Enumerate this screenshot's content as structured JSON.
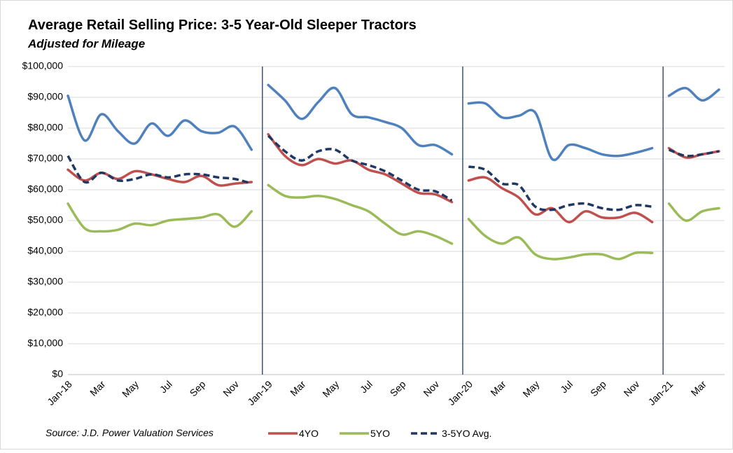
{
  "chart_data": {
    "type": "line",
    "title": "Average Retail Selling Price: 3-5 Year-Old Sleeper Tractors",
    "subtitle": "Adjusted for Mileage",
    "source": "Source: J.D. Power Valuation Services",
    "categories": [
      "Jan-18",
      null,
      "Mar",
      null,
      "May",
      null,
      "Jul",
      null,
      "Sep",
      null,
      "Nov",
      null,
      "Jan-19",
      null,
      "Mar",
      null,
      "May",
      null,
      "Jul",
      null,
      "Sep",
      null,
      "Nov",
      null,
      "Jan-20",
      null,
      "Mar",
      null,
      "May",
      null,
      "Jul",
      null,
      "Sep",
      null,
      "Nov",
      null,
      "Jan-21",
      null,
      "Mar",
      null
    ],
    "series": [
      {
        "color": "#4f81bd",
        "dash": false,
        "values": [
          90500,
          76000,
          84500,
          79000,
          75000,
          81500,
          77500,
          82500,
          79000,
          78500,
          80500,
          73000,
          94000,
          89000,
          83000,
          88500,
          93000,
          84500,
          83500,
          82000,
          80000,
          74500,
          74500,
          71500,
          88000,
          88000,
          83500,
          84000,
          85000,
          70000,
          74500,
          73500,
          71500,
          71000,
          72000,
          73500,
          90500,
          93000,
          89000,
          92500
        ]
      },
      {
        "name": "4YO",
        "color": "#c0504d",
        "dash": false,
        "values": [
          66500,
          63000,
          65500,
          63500,
          66000,
          65000,
          63500,
          62500,
          64500,
          61500,
          62000,
          62500,
          78000,
          71000,
          68000,
          70000,
          68500,
          69500,
          66500,
          65000,
          62000,
          59000,
          58500,
          56000,
          63000,
          64000,
          60500,
          57500,
          52000,
          54000,
          49500,
          53000,
          51000,
          51000,
          52500,
          49500,
          73500,
          70500,
          71500,
          72500
        ]
      },
      {
        "name": "5YO",
        "color": "#9bbb59",
        "dash": false,
        "values": [
          55500,
          47500,
          46500,
          47000,
          49000,
          48500,
          50000,
          50500,
          51000,
          52000,
          48000,
          53000,
          61500,
          58000,
          57500,
          58000,
          57000,
          55000,
          53000,
          49000,
          45500,
          46500,
          45000,
          42500,
          50500,
          45000,
          42500,
          44500,
          39000,
          37500,
          38000,
          39000,
          39000,
          37500,
          39500,
          39500,
          55500,
          50000,
          53000,
          54000
        ]
      },
      {
        "name": "3-5YO Avg.",
        "color": "#1f3864",
        "dash": true,
        "values": [
          71000,
          62500,
          65500,
          63000,
          63500,
          65000,
          64000,
          65000,
          65000,
          64000,
          63500,
          62000,
          77500,
          72500,
          69500,
          72500,
          73000,
          69500,
          68000,
          66000,
          63000,
          60000,
          59500,
          56500,
          67500,
          66500,
          62000,
          61500,
          54500,
          53500,
          55000,
          55500,
          54000,
          53500,
          55000,
          54500,
          73000,
          71000,
          71500,
          72500
        ]
      }
    ],
    "ylim": [
      0,
      100000
    ],
    "yticks": [
      {
        "value": 0,
        "label": "$0"
      },
      {
        "value": 10000,
        "label": "$10,000"
      },
      {
        "value": 20000,
        "label": "$20,000"
      },
      {
        "value": 30000,
        "label": "$30,000"
      },
      {
        "value": 40000,
        "label": "$40,000"
      },
      {
        "value": 50000,
        "label": "$50,000"
      },
      {
        "value": 60000,
        "label": "$60,000"
      },
      {
        "value": 70000,
        "label": "$70,000"
      },
      {
        "value": 80000,
        "label": "$80,000"
      },
      {
        "value": 90000,
        "label": "$90,000"
      },
      {
        "value": 100000,
        "label": "$100,000"
      }
    ],
    "grid": true,
    "legend": "bottom"
  }
}
